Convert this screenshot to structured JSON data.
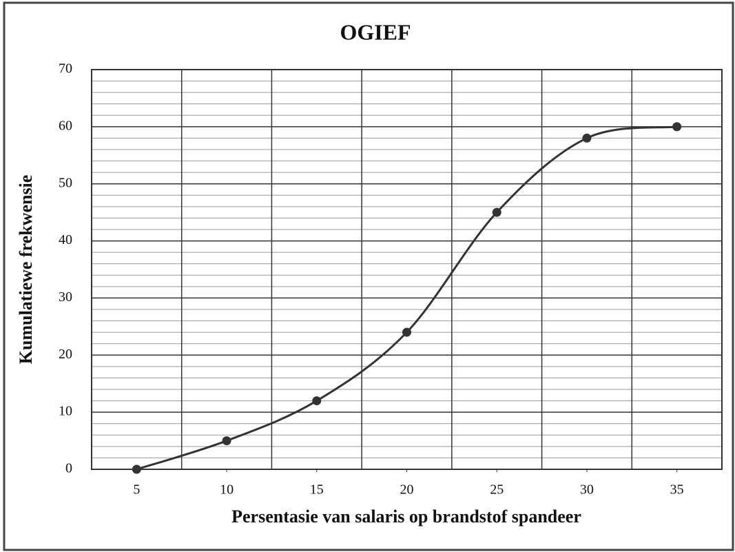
{
  "chart_data": {
    "type": "line",
    "title": "OGIEF",
    "xlabel": "Persentasie van salaris op brandstof spandeer",
    "ylabel": "Kumulatiewe frekwensie",
    "x": [
      5,
      10,
      15,
      20,
      25,
      30,
      35
    ],
    "series": [
      {
        "name": "Kumulatiewe frekwensie",
        "color": "#333333",
        "values": [
          0,
          5,
          12,
          24,
          45,
          58,
          60
        ]
      }
    ],
    "xlim": [
      2.5,
      37.5
    ],
    "xticks": [
      5,
      10,
      15,
      20,
      25,
      30,
      35
    ],
    "ylim": [
      0,
      70
    ],
    "yticks": [
      0,
      10,
      20,
      30,
      40,
      50,
      60,
      70
    ],
    "grid": true,
    "smooth": true
  }
}
